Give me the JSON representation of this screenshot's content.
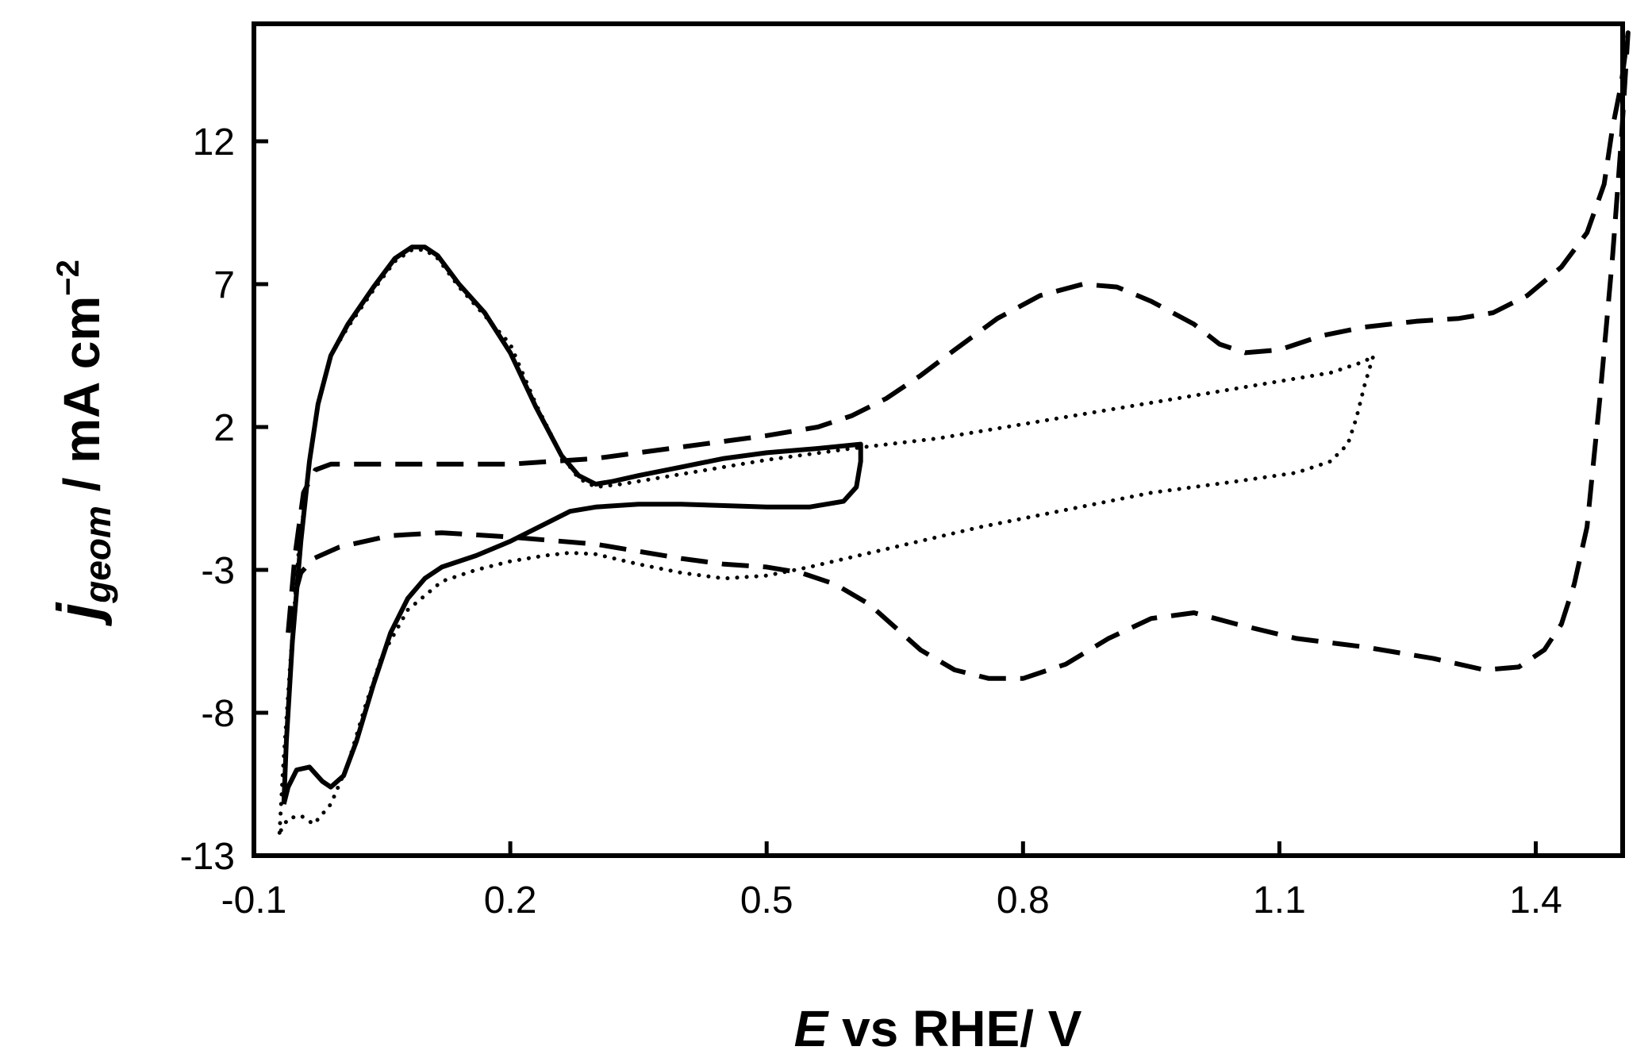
{
  "chart_data": {
    "type": "line",
    "title": "",
    "xlabel": {
      "symbol": "E",
      "rest": " vs RHE/ V"
    },
    "ylabel": {
      "symbol": "j",
      "subscript": "geom",
      "rest": " / mA cm",
      "superscript": "−2"
    },
    "xlim": [
      -0.1,
      1.55
    ],
    "ylim": [
      -13,
      17
    ],
    "xticks": [
      -0.1,
      0.2,
      0.5,
      0.8,
      1.1,
      1.4
    ],
    "xtick_labels": [
      "-0.1",
      "0.2",
      "0.5",
      "0.8",
      "1.1",
      "1.4"
    ],
    "yticks": [
      -13,
      -8,
      -3,
      2,
      7,
      12
    ],
    "ytick_labels": [
      "-13",
      "-8",
      "-3",
      "2",
      "7",
      "12"
    ],
    "grid": false,
    "legend": "none",
    "series": [
      {
        "name": "solid",
        "style": "solid",
        "color": "#000000",
        "points": [
          [
            -0.065,
            -11.2
          ],
          [
            -0.062,
            -9.0
          ],
          [
            -0.055,
            -5.5
          ],
          [
            -0.045,
            -2.0
          ],
          [
            -0.035,
            0.8
          ],
          [
            -0.025,
            2.8
          ],
          [
            -0.01,
            4.5
          ],
          [
            0.01,
            5.6
          ],
          [
            0.04,
            6.9
          ],
          [
            0.065,
            7.9
          ],
          [
            0.085,
            8.3
          ],
          [
            0.1,
            8.3
          ],
          [
            0.115,
            8.0
          ],
          [
            0.14,
            7.0
          ],
          [
            0.17,
            6.0
          ],
          [
            0.2,
            4.6
          ],
          [
            0.23,
            2.7
          ],
          [
            0.26,
            1.0
          ],
          [
            0.28,
            0.3
          ],
          [
            0.3,
            0.0
          ],
          [
            0.32,
            0.1
          ],
          [
            0.35,
            0.3
          ],
          [
            0.4,
            0.6
          ],
          [
            0.45,
            0.9
          ],
          [
            0.5,
            1.1
          ],
          [
            0.56,
            1.25
          ],
          [
            0.61,
            1.4
          ],
          [
            0.61,
            0.8
          ],
          [
            0.605,
            -0.1
          ],
          [
            0.59,
            -0.6
          ],
          [
            0.55,
            -0.8
          ],
          [
            0.5,
            -0.8
          ],
          [
            0.45,
            -0.75
          ],
          [
            0.4,
            -0.7
          ],
          [
            0.35,
            -0.7
          ],
          [
            0.3,
            -0.8
          ],
          [
            0.27,
            -0.95
          ],
          [
            0.24,
            -1.4
          ],
          [
            0.2,
            -2.0
          ],
          [
            0.16,
            -2.5
          ],
          [
            0.12,
            -2.9
          ],
          [
            0.1,
            -3.3
          ],
          [
            0.08,
            -4.0
          ],
          [
            0.06,
            -5.2
          ],
          [
            0.04,
            -7.0
          ],
          [
            0.02,
            -9.0
          ],
          [
            0.005,
            -10.2
          ],
          [
            -0.01,
            -10.6
          ],
          [
            -0.02,
            -10.4
          ],
          [
            -0.035,
            -9.9
          ],
          [
            -0.05,
            -10.0
          ],
          [
            -0.06,
            -10.6
          ],
          [
            -0.065,
            -11.2
          ]
        ]
      },
      {
        "name": "dotted",
        "style": "dotted",
        "color": "#000000",
        "points": [
          [
            -0.07,
            -12.2
          ],
          [
            -0.066,
            -10.0
          ],
          [
            -0.058,
            -6.5
          ],
          [
            -0.048,
            -2.5
          ],
          [
            -0.035,
            0.8
          ],
          [
            -0.025,
            2.8
          ],
          [
            -0.01,
            4.5
          ],
          [
            0.01,
            5.5
          ],
          [
            0.04,
            6.8
          ],
          [
            0.065,
            7.8
          ],
          [
            0.085,
            8.2
          ],
          [
            0.1,
            8.2
          ],
          [
            0.115,
            7.9
          ],
          [
            0.14,
            6.9
          ],
          [
            0.17,
            5.9
          ],
          [
            0.2,
            4.9
          ],
          [
            0.23,
            2.8
          ],
          [
            0.26,
            1.0
          ],
          [
            0.28,
            0.2
          ],
          [
            0.3,
            -0.1
          ],
          [
            0.33,
            0.0
          ],
          [
            0.4,
            0.35
          ],
          [
            0.5,
            0.85
          ],
          [
            0.6,
            1.25
          ],
          [
            0.7,
            1.6
          ],
          [
            0.8,
            2.1
          ],
          [
            0.9,
            2.6
          ],
          [
            1.0,
            3.1
          ],
          [
            1.1,
            3.6
          ],
          [
            1.16,
            3.9
          ],
          [
            1.2,
            4.3
          ],
          [
            1.21,
            4.5
          ],
          [
            1.2,
            3.5
          ],
          [
            1.19,
            2.3
          ],
          [
            1.18,
            1.4
          ],
          [
            1.16,
            0.8
          ],
          [
            1.12,
            0.4
          ],
          [
            1.05,
            0.1
          ],
          [
            0.95,
            -0.3
          ],
          [
            0.85,
            -0.9
          ],
          [
            0.75,
            -1.5
          ],
          [
            0.65,
            -2.2
          ],
          [
            0.55,
            -2.9
          ],
          [
            0.5,
            -3.2
          ],
          [
            0.45,
            -3.3
          ],
          [
            0.4,
            -3.1
          ],
          [
            0.35,
            -2.8
          ],
          [
            0.3,
            -2.45
          ],
          [
            0.27,
            -2.4
          ],
          [
            0.24,
            -2.5
          ],
          [
            0.2,
            -2.7
          ],
          [
            0.16,
            -3.0
          ],
          [
            0.12,
            -3.4
          ],
          [
            0.08,
            -4.4
          ],
          [
            0.05,
            -6.0
          ],
          [
            0.03,
            -7.8
          ],
          [
            0.01,
            -9.8
          ],
          [
            -0.01,
            -11.2
          ],
          [
            -0.03,
            -11.9
          ],
          [
            -0.045,
            -11.6
          ],
          [
            -0.06,
            -11.7
          ],
          [
            -0.07,
            -12.2
          ]
        ]
      },
      {
        "name": "dashed",
        "style": "dashed",
        "color": "#000000",
        "points": [
          [
            -0.06,
            -5.2
          ],
          [
            -0.052,
            -2.5
          ],
          [
            -0.042,
            -0.3
          ],
          [
            -0.028,
            0.5
          ],
          [
            -0.01,
            0.7
          ],
          [
            0.1,
            0.7
          ],
          [
            0.2,
            0.7
          ],
          [
            0.3,
            0.9
          ],
          [
            0.4,
            1.3
          ],
          [
            0.5,
            1.7
          ],
          [
            0.56,
            2.0
          ],
          [
            0.6,
            2.4
          ],
          [
            0.64,
            3.0
          ],
          [
            0.68,
            3.8
          ],
          [
            0.72,
            4.7
          ],
          [
            0.77,
            5.8
          ],
          [
            0.82,
            6.6
          ],
          [
            0.87,
            7.0
          ],
          [
            0.91,
            6.9
          ],
          [
            0.95,
            6.4
          ],
          [
            1.0,
            5.6
          ],
          [
            1.03,
            4.9
          ],
          [
            1.06,
            4.6
          ],
          [
            1.1,
            4.7
          ],
          [
            1.15,
            5.2
          ],
          [
            1.2,
            5.5
          ],
          [
            1.26,
            5.7
          ],
          [
            1.31,
            5.8
          ],
          [
            1.35,
            6.0
          ],
          [
            1.39,
            6.6
          ],
          [
            1.43,
            7.6
          ],
          [
            1.46,
            8.8
          ],
          [
            1.48,
            10.5
          ],
          [
            1.49,
            12.5
          ],
          [
            1.5,
            14.0
          ],
          [
            1.508,
            15.8
          ],
          [
            1.5,
            12.0
          ],
          [
            1.49,
            8.0
          ],
          [
            1.475,
            3.0
          ],
          [
            1.46,
            -1.5
          ],
          [
            1.445,
            -3.5
          ],
          [
            1.43,
            -4.9
          ],
          [
            1.41,
            -5.8
          ],
          [
            1.38,
            -6.4
          ],
          [
            1.34,
            -6.5
          ],
          [
            1.28,
            -6.1
          ],
          [
            1.2,
            -5.7
          ],
          [
            1.12,
            -5.4
          ],
          [
            1.05,
            -4.9
          ],
          [
            1.0,
            -4.5
          ],
          [
            0.95,
            -4.7
          ],
          [
            0.9,
            -5.4
          ],
          [
            0.85,
            -6.3
          ],
          [
            0.8,
            -6.8
          ],
          [
            0.76,
            -6.8
          ],
          [
            0.72,
            -6.5
          ],
          [
            0.68,
            -5.8
          ],
          [
            0.65,
            -5.0
          ],
          [
            0.62,
            -4.2
          ],
          [
            0.58,
            -3.5
          ],
          [
            0.54,
            -3.1
          ],
          [
            0.5,
            -2.9
          ],
          [
            0.45,
            -2.8
          ],
          [
            0.4,
            -2.6
          ],
          [
            0.35,
            -2.35
          ],
          [
            0.3,
            -2.1
          ],
          [
            0.2,
            -1.85
          ],
          [
            0.12,
            -1.7
          ],
          [
            0.06,
            -1.8
          ],
          [
            0.0,
            -2.2
          ],
          [
            -0.03,
            -2.6
          ],
          [
            -0.045,
            -3.1
          ],
          [
            -0.055,
            -4.2
          ],
          [
            -0.06,
            -5.2
          ]
        ]
      }
    ]
  }
}
